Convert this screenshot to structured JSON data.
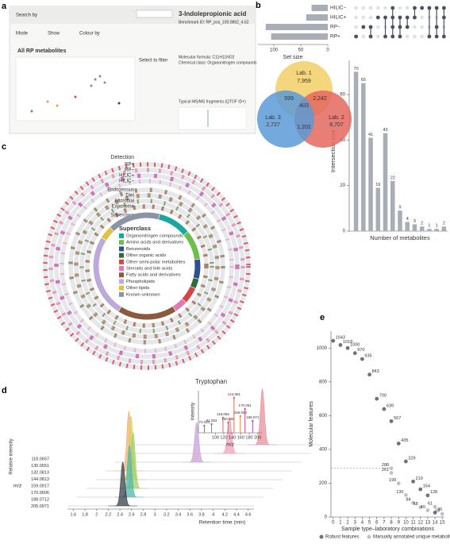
{
  "panels": [
    "a",
    "b",
    "c",
    "d",
    "e"
  ],
  "app": {
    "search_label": "Search by",
    "mode_label": "Mode",
    "show_label": "Show",
    "colour_label": "Colour by",
    "plot_title": "All RP metabolites",
    "filter_label": "Select to filter",
    "compound": "3-Indolepropionic acid",
    "benchmark": "Benchmark ID: RP_pos_190.0862_4.62",
    "formula": "Molecular formula: C11H11NO2",
    "chem_class": "Chemical class: Organonitrogen compounds",
    "fragments": "Typical MS/MS fragments (QTOF ID+)"
  },
  "chart_data": [
    {
      "type": "upset",
      "set_names": [
        "HILIC−",
        "HILIC+",
        "RP−",
        "RP+"
      ],
      "set_sizes": [
        30,
        40,
        115,
        105
      ],
      "set_xlim": [
        0,
        130
      ],
      "set_xticks": [
        100,
        50,
        0
      ],
      "set_xlabel": "Set size",
      "combinations": [
        [
          3
        ],
        [
          2
        ],
        [
          2,
          3
        ],
        [
          1
        ],
        [
          1,
          3
        ],
        [
          0,
          1,
          2,
          3
        ],
        [
          1,
          2,
          3
        ],
        [
          1,
          2
        ],
        [
          0,
          1
        ],
        [
          0
        ],
        [
          0,
          3
        ],
        [
          0,
          2,
          3
        ],
        [
          0,
          1,
          3
        ]
      ],
      "values": [
        70,
        65,
        41,
        19,
        43,
        22,
        9,
        4,
        3,
        2,
        1,
        1,
        2
      ],
      "ylim": [
        0,
        75
      ],
      "yticks": [
        0,
        20,
        40,
        60
      ],
      "ylabel": "Intersection size",
      "xlabel": "Number of metabolites",
      "color": "#a9aeb6",
      "dot_color": "#4a5160"
    },
    {
      "type": "venn",
      "sets": [
        {
          "name": "Lab. 1",
          "value": 7959,
          "value_label": "7,959",
          "color": "#f1cf66"
        },
        {
          "name": "Lab. 2",
          "value": 8707,
          "value_label": "8,707",
          "color": "#e4675e"
        },
        {
          "name": "Lab. 3",
          "value": 2727,
          "value_label": "2,727",
          "color": "#5b9ad6"
        }
      ],
      "overlaps": [
        {
          "value": 599
        },
        {
          "value": 2242,
          "value_label": "2,242"
        },
        {
          "value": 403
        },
        {
          "value": 1202,
          "value_label": "1,202"
        }
      ]
    },
    {
      "type": "circos",
      "detection_label": "Detection",
      "tracks": [
        "RP+",
        "RP−",
        "HILIC+",
        "HILIC−",
        "Endogenous",
        "Diet",
        "Microbial",
        "Exposome",
        "Superclass"
      ],
      "legend_title": "Superclass",
      "superclasses": [
        {
          "name": "Organonitrogen compounds",
          "color": "#1aa79f",
          "value": 10
        },
        {
          "name": "Amino acids and derivatives",
          "color": "#6bbf4c",
          "value": 9
        },
        {
          "name": "Benzenoids",
          "color": "#2f4f8f",
          "value": 6
        },
        {
          "name": "Other organic acids",
          "color": "#2e6b3a",
          "value": 3
        },
        {
          "name": "Other semi-polar metabolites",
          "color": "#d64545",
          "value": 5
        },
        {
          "name": "Steroids and bile acids",
          "color": "#e07ab0",
          "value": 4
        },
        {
          "name": "Fatty acids and derivatives",
          "color": "#8b5a3c",
          "value": 18
        },
        {
          "name": "Phospholipids",
          "color": "#bcaadb",
          "value": 25
        },
        {
          "name": "Other lipids",
          "color": "#e2c13f",
          "value": 4
        },
        {
          "name": "Known unknown",
          "color": "#8a94a6",
          "value": 16
        }
      ]
    },
    {
      "type": "chromatogram",
      "xlabel": "Retention time (min)",
      "ylabel": "Relative intensity",
      "zlabel": "m/z",
      "xlim": [
        1.5,
        4.7
      ],
      "xticks": [
        1.6,
        1.8,
        2.0,
        2.2,
        2.4,
        2.6,
        2.8,
        3.0,
        3.2,
        3.4,
        3.6,
        3.8,
        4.0,
        4.2,
        4.4,
        4.6
      ],
      "series": [
        {
          "name": "118.0657",
          "color": "#e8909b",
          "peak": 3.7,
          "height": 70
        },
        {
          "name": "130.0651",
          "color": "#f0a0b8",
          "peak": 3.3,
          "height": 45
        },
        {
          "name": "132.0813",
          "color": "#c8a0d8",
          "peak": 2.9,
          "height": 50
        },
        {
          "name": "144.0813",
          "color": "#f2b07a",
          "peak": 1.9,
          "height": 75
        },
        {
          "name": "159.0917",
          "color": "#d8d060",
          "peak": 2.1,
          "height": 80
        },
        {
          "name": "170.0606",
          "color": "#a0d070",
          "peak": 2.3,
          "height": 70
        },
        {
          "name": "188.0712",
          "color": "#50b8a8",
          "peak": 2.4,
          "height": 65
        },
        {
          "name": "205.0971",
          "color": "#3a3f48",
          "peak": 2.45,
          "height": 55
        }
      ],
      "spectrum": {
        "title": "Tryptophan",
        "xlabel": "m/z",
        "ylabel": "Intensity",
        "xlim": [
          60,
          210
        ],
        "xticks": [
          100,
          120,
          140,
          160,
          180,
          200
        ],
        "x": [
          74.023,
          91.053,
          118.065,
          130.065,
          144.081,
          159.092,
          170.061,
          188.071
        ],
        "values": [
          18,
          22,
          38,
          26,
          88,
          42,
          60,
          30
        ],
        "colors": [
          "#7a7f88",
          "#7a7f88",
          "#e4675e",
          "#e4675e",
          "#e4675e",
          "#e08a2a",
          "#c84a8a",
          "#a050c0"
        ]
      }
    },
    {
      "type": "scatter",
      "xlabel": "Sample type–laboratory combinations",
      "ylabel": "Molecular features",
      "xlim": [
        -0.3,
        15.3
      ],
      "ylim": [
        0,
        1100
      ],
      "xticks": [
        0,
        1,
        2,
        3,
        4,
        5,
        6,
        7,
        8,
        9,
        10,
        11,
        12,
        13,
        14,
        15
      ],
      "yticks": [
        0,
        200,
        400,
        600,
        800,
        1000
      ],
      "ref_line": 288,
      "series": [
        {
          "name": "Robust features",
          "color": "#6b7280",
          "x": [
            0,
            1,
            2,
            3,
            4,
            5,
            6,
            7,
            8,
            9,
            10,
            11,
            12,
            13,
            14
          ],
          "values": [
            1043,
            1018,
            1000,
            970,
            935,
            843,
            700,
            639,
            567,
            435,
            329,
            210,
            164,
            128,
            26
          ]
        },
        {
          "name": "Manually annotated unique metabolites",
          "color": "#bcc2cc",
          "x": [
            8,
            8,
            9,
            10,
            11,
            12,
            13,
            14,
            15
          ],
          "values": [
            288,
            261,
            199,
            130,
            84,
            58,
            40,
            61,
            18
          ]
        }
      ]
    }
  ]
}
